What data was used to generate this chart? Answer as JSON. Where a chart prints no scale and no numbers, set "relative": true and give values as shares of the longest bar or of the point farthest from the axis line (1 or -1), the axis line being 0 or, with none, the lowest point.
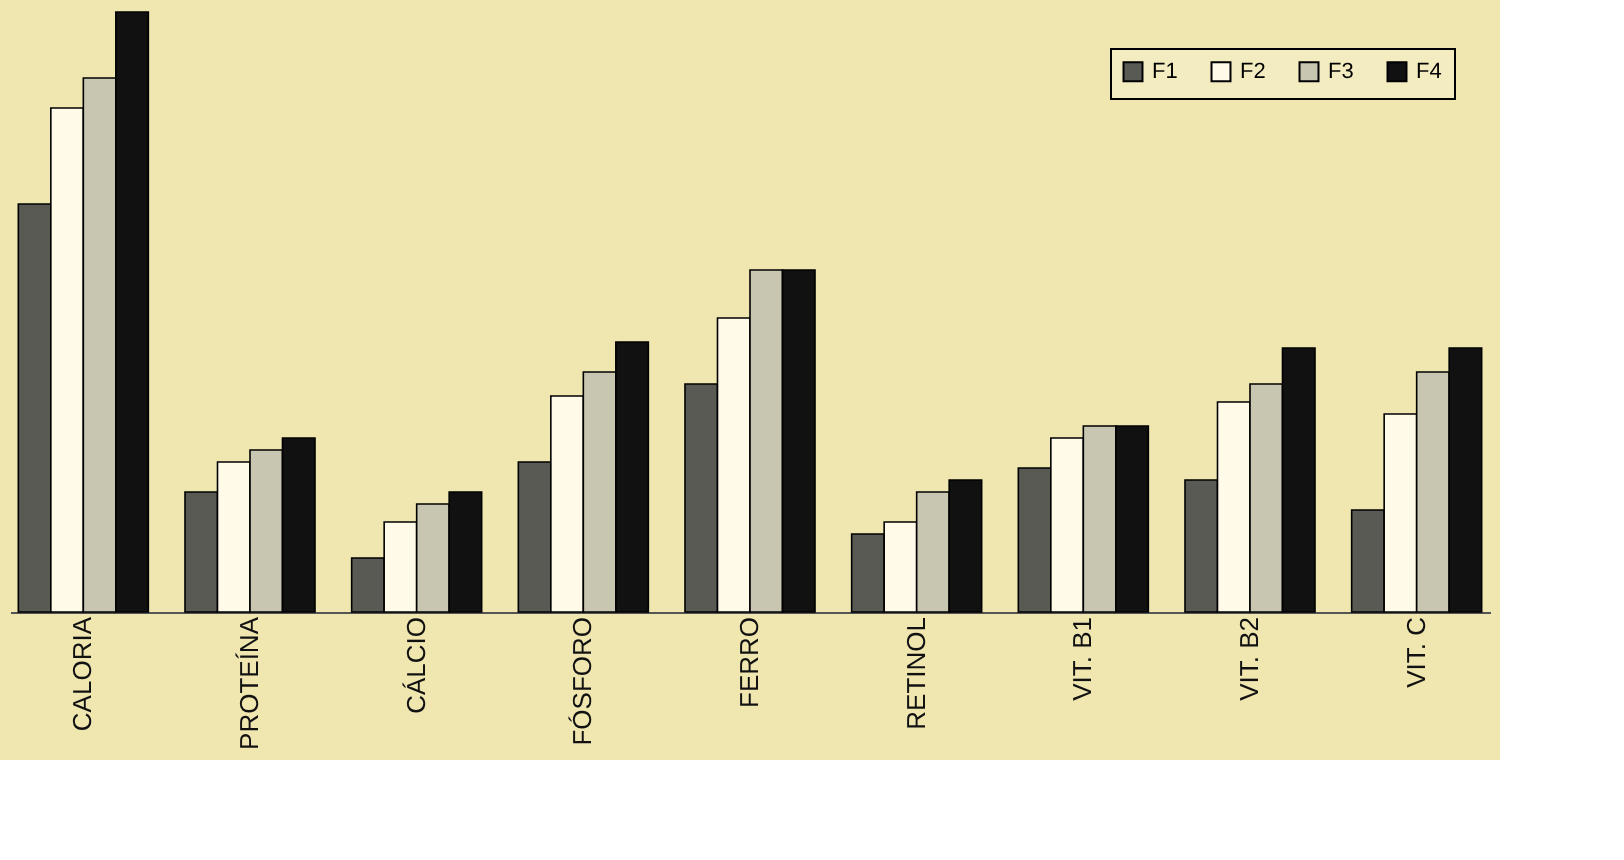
{
  "chart_data": {
    "type": "bar",
    "relative": true,
    "legend": "top right",
    "categories": [
      "CALORIA",
      "PROTEÍNA",
      "CÁLCIO",
      "FÓSFORO",
      "FERRO",
      "RETINOL",
      "VIT. B1",
      "VIT. B2",
      "VIT. C"
    ],
    "series": [
      {
        "name": "F1",
        "color": "#5a5a55",
        "values": [
          0.68,
          0.2,
          0.09,
          0.25,
          0.38,
          0.13,
          0.24,
          0.22,
          0.17
        ]
      },
      {
        "name": "F2",
        "color": "#fffbe8",
        "values": [
          0.84,
          0.25,
          0.15,
          0.36,
          0.49,
          0.15,
          0.29,
          0.35,
          0.33
        ]
      },
      {
        "name": "F3",
        "color": "#c8c6b0",
        "values": [
          0.89,
          0.27,
          0.18,
          0.4,
          0.57,
          0.2,
          0.31,
          0.38,
          0.4
        ]
      },
      {
        "name": "F4",
        "color": "#111111",
        "values": [
          1.0,
          0.29,
          0.2,
          0.45,
          0.57,
          0.22,
          0.31,
          0.44,
          0.44
        ]
      }
    ]
  }
}
